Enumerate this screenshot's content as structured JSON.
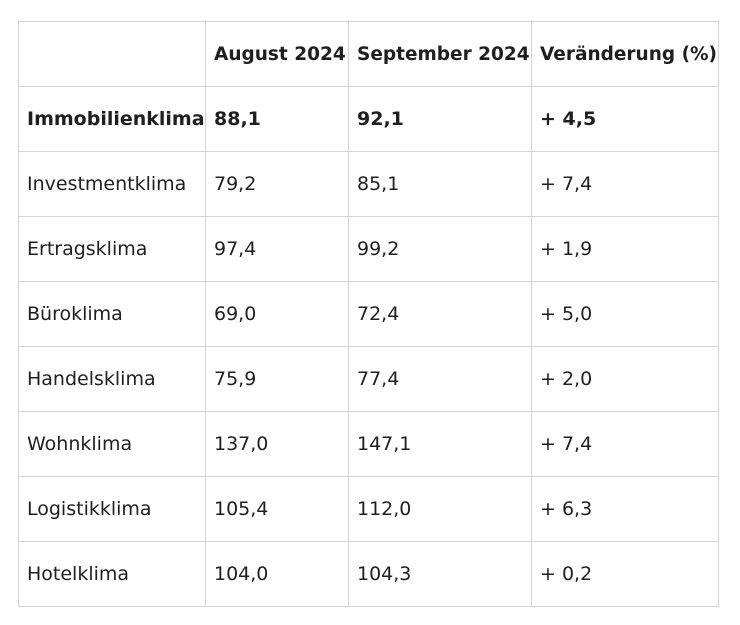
{
  "table": {
    "headers": [
      "",
      "August 2024",
      "September 2024",
      "Veränderung (%)"
    ],
    "rows": [
      {
        "label": "Immobilienklima",
        "aug": "88,1",
        "sep": "92,1",
        "change": "+ 4,5",
        "bold": true
      },
      {
        "label": "Investmentklima",
        "aug": "79,2",
        "sep": "85,1",
        "change": "+ 7,4"
      },
      {
        "label": "Ertragsklima",
        "aug": "97,4",
        "sep": "99,2",
        "change": "+ 1,9"
      },
      {
        "label": "Büroklima",
        "aug": "69,0",
        "sep": "72,4",
        "change": "+ 5,0"
      },
      {
        "label": "Handelsklima",
        "aug": "75,9",
        "sep": "77,4",
        "change": "+ 2,0"
      },
      {
        "label": "Wohnklima",
        "aug": "137,0",
        "sep": "147,1",
        "change": "+ 7,4"
      },
      {
        "label": "Logistikklima",
        "aug": "105,4",
        "sep": "112,0",
        "change": "+ 6,3"
      },
      {
        "label": "Hotelklima",
        "aug": "104,0",
        "sep": "104,3",
        "change": "+ 0,2"
      }
    ]
  }
}
